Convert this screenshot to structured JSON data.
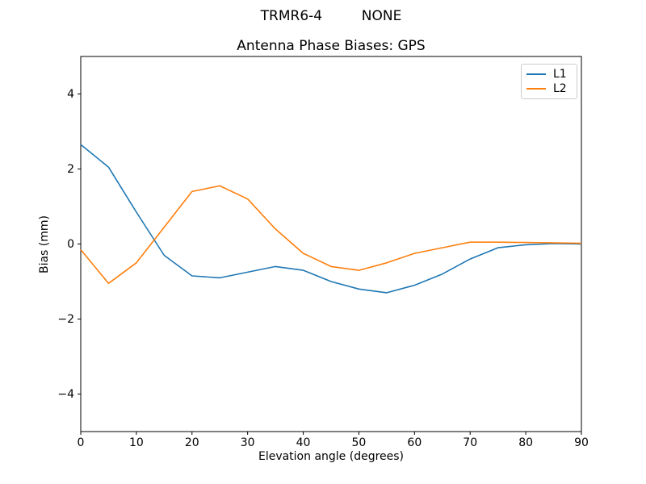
{
  "header": {
    "suptitle": "TRMR6-4         NONE",
    "title": "Antenna Phase Biases: GPS"
  },
  "chart_data": {
    "type": "line",
    "suptitle": "TRMR6-4         NONE",
    "title": "Antenna Phase Biases: GPS",
    "xlabel": "Elevation angle (degrees)",
    "ylabel": "Bias (mm)",
    "xlim": [
      0,
      90
    ],
    "ylim": [
      -5,
      5
    ],
    "x_ticks": [
      0,
      10,
      20,
      30,
      40,
      50,
      60,
      70,
      80,
      90
    ],
    "y_ticks": [
      -4,
      -2,
      0,
      2,
      4
    ],
    "grid": false,
    "legend_position": "upper right",
    "background_color": "#ffffff",
    "frame_color": "#000000",
    "x": [
      0,
      5,
      10,
      15,
      20,
      25,
      30,
      35,
      40,
      45,
      50,
      55,
      60,
      65,
      70,
      75,
      80,
      85,
      90
    ],
    "series": [
      {
        "name": "L1",
        "color": "#1f77b4",
        "values": [
          2.65,
          2.05,
          0.85,
          -0.3,
          -0.85,
          -0.9,
          -0.75,
          -0.6,
          -0.7,
          -1.0,
          -1.2,
          -1.3,
          -1.1,
          -0.8,
          -0.4,
          -0.1,
          -0.02,
          0.01,
          0.0
        ]
      },
      {
        "name": "L2",
        "color": "#ff7f0e",
        "values": [
          -0.15,
          -1.05,
          -0.5,
          0.45,
          1.4,
          1.55,
          1.2,
          0.4,
          -0.25,
          -0.6,
          -0.7,
          -0.5,
          -0.25,
          -0.1,
          0.05,
          0.05,
          0.04,
          0.03,
          0.02
        ]
      }
    ]
  }
}
